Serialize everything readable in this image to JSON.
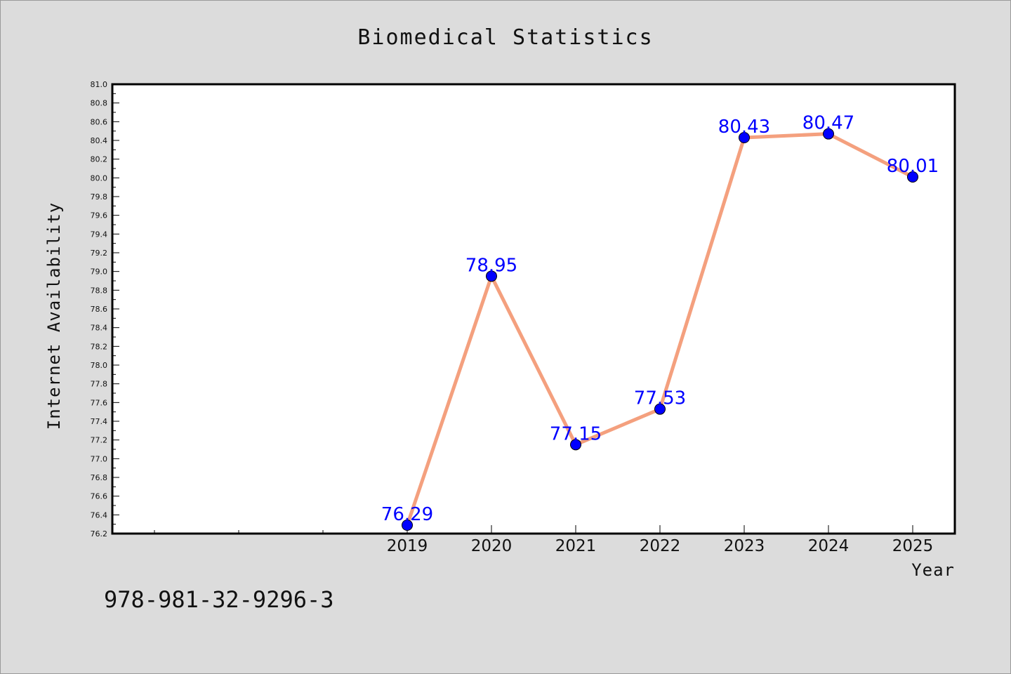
{
  "chart_data": {
    "type": "line",
    "title": "Biomedical Statistics",
    "xlabel": "Year",
    "ylabel": "Internet Availability",
    "categories": [
      "2019",
      "2020",
      "2021",
      "2022",
      "2023",
      "2024",
      "2025"
    ],
    "series": [
      {
        "values": [
          76.29,
          78.95,
          77.15,
          77.53,
          80.43,
          80.47,
          80.01
        ],
        "labels": [
          "76.29",
          "78.95",
          "77.15",
          "77.53",
          "80.43",
          "80.47",
          "80.01"
        ],
        "line_color": "#f4a07e",
        "marker_color": "#0000ff"
      }
    ],
    "ylim": [
      76.2,
      81.0
    ],
    "yticks": [
      "76.2",
      "76.4",
      "76.6",
      "76.8",
      "77.0",
      "77.2",
      "77.4",
      "77.6",
      "77.8",
      "78.0",
      "78.2",
      "78.4",
      "78.6",
      "78.8",
      "79.0",
      "79.2",
      "79.4",
      "79.6",
      "79.8",
      "80.0",
      "80.2",
      "80.4",
      "80.6",
      "80.8",
      "81.0"
    ],
    "grid": false,
    "legend": "none"
  },
  "footer": {
    "isbn": "978-981-32-9296-3"
  },
  "colors": {
    "background": "#dcdcdc",
    "plot_bg": "#ffffff",
    "axis": "#000000",
    "label": "#0000ff",
    "line": "#f4a07e"
  }
}
